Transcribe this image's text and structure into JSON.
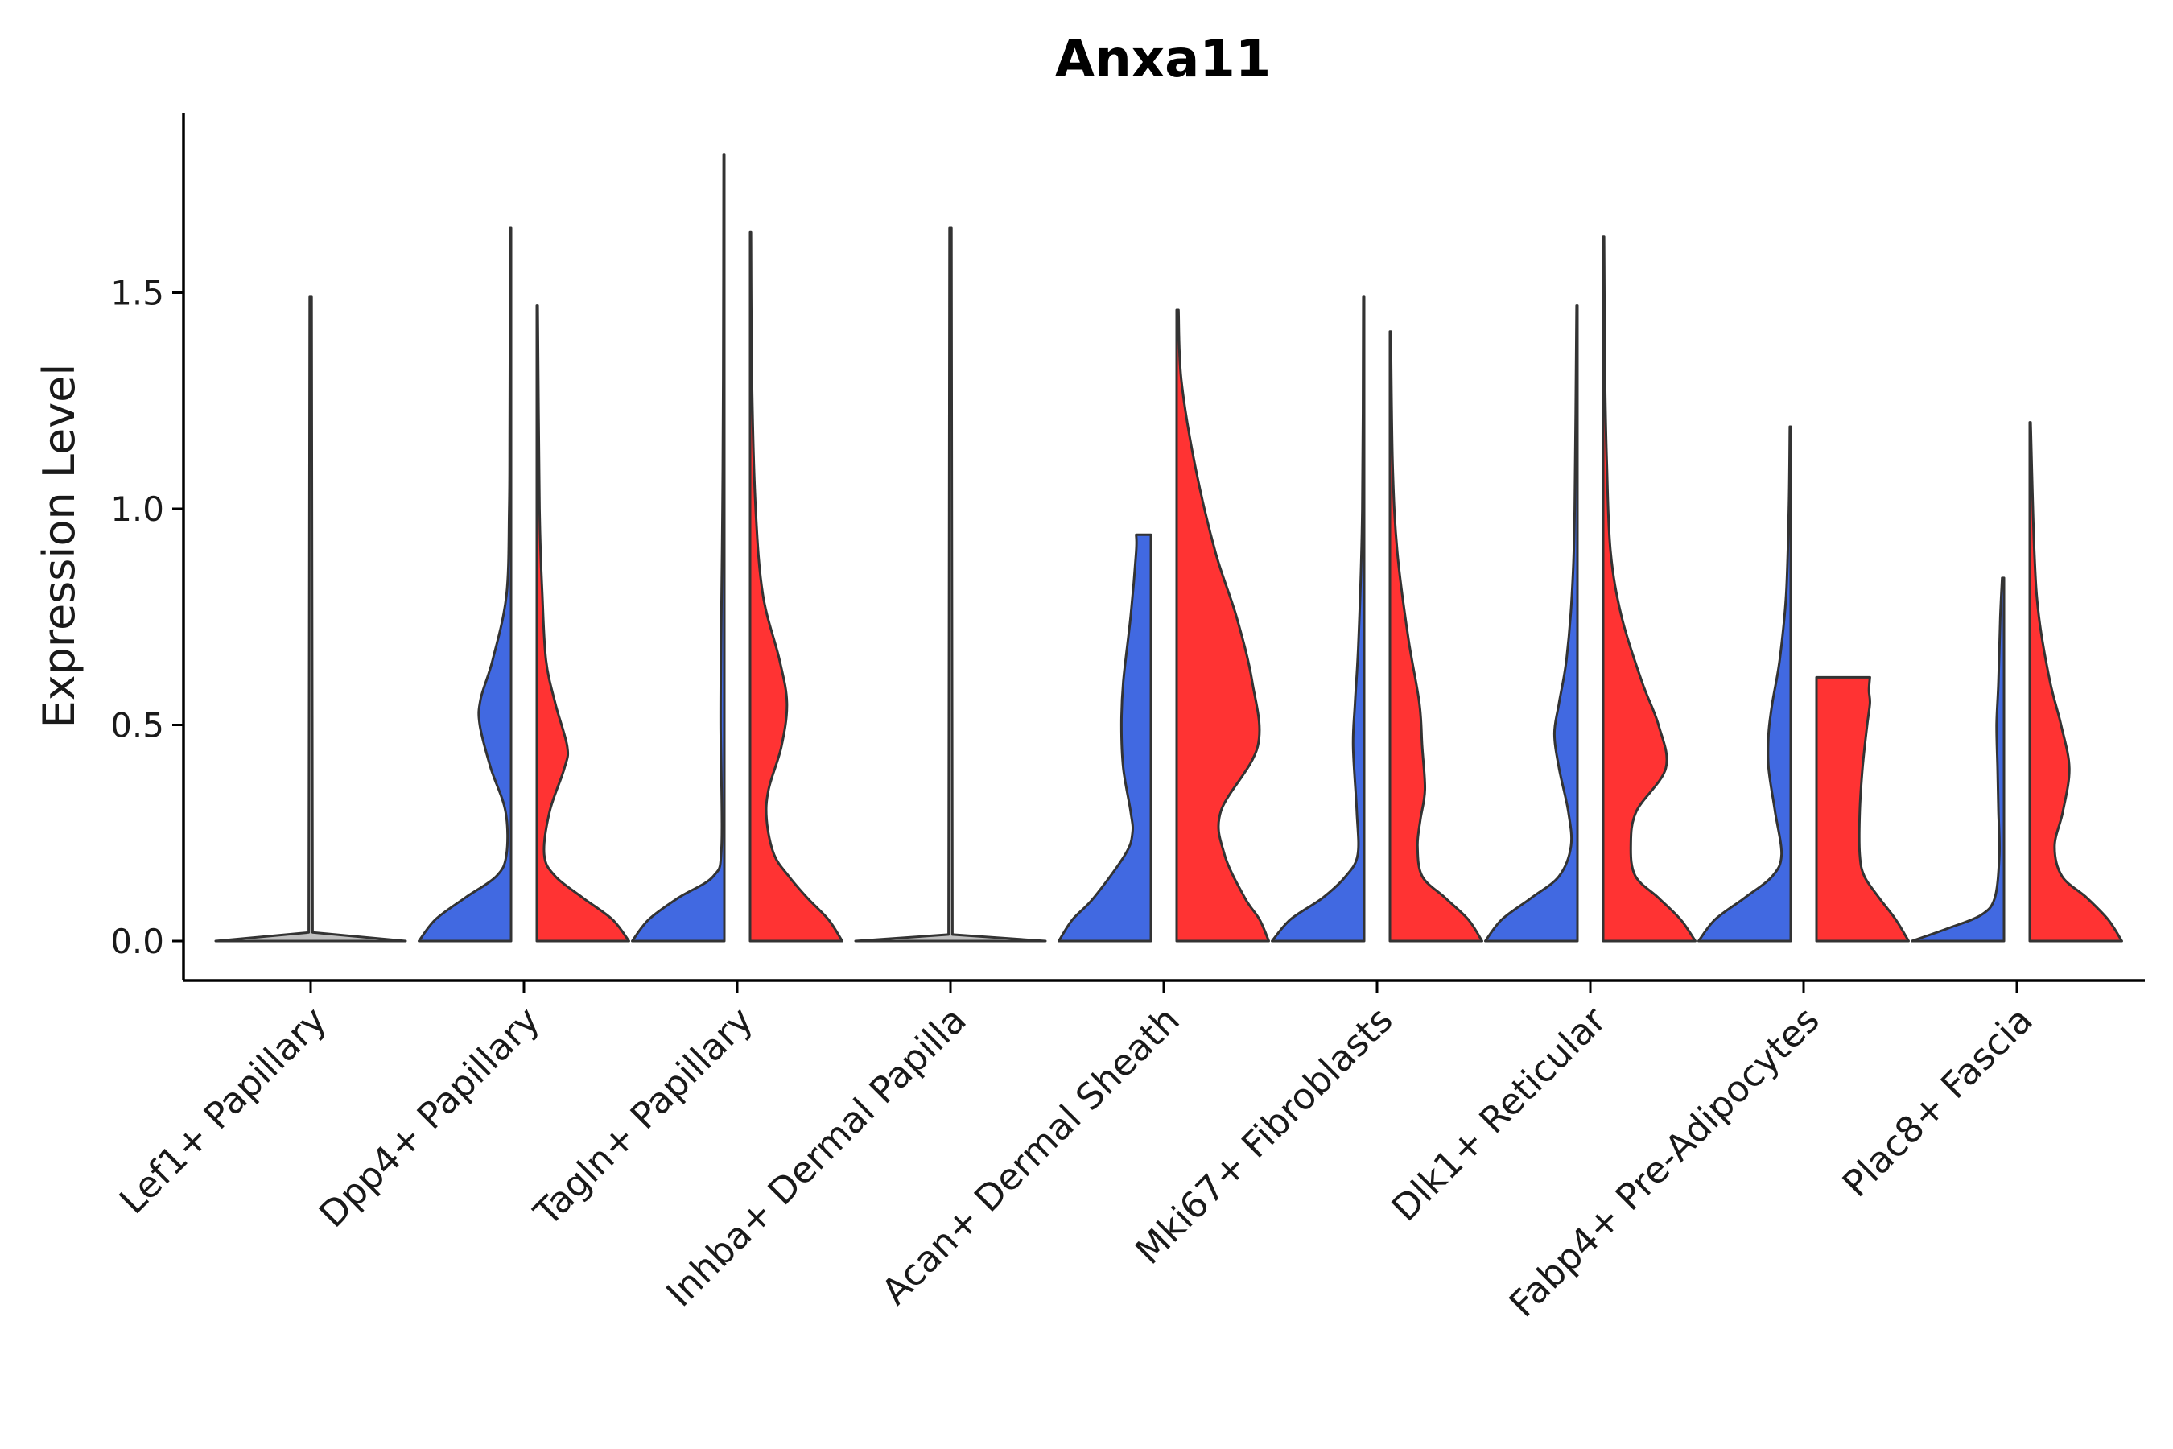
{
  "chart_data": {
    "type": "violin",
    "title": "Anxa11",
    "xlabel": "",
    "ylabel": "Expression Level",
    "ylim": [
      -0.09,
      1.92
    ],
    "yticks": [
      0.0,
      0.5,
      1.0,
      1.5
    ],
    "ytick_labels": [
      "0.0",
      "0.5",
      "1.0",
      "1.5"
    ],
    "grid": false,
    "legend": "none",
    "colors": {
      "blue": "#4169E1",
      "red": "#FF3333",
      "grey": "#C0C0C0"
    },
    "categories": [
      "Lef1+ Papillary",
      "Dpp4+ Papillary",
      "Tagln+ Papillary",
      "Inhba+ Dermal Papilla",
      "Acan+ Dermal Sheath",
      "Mki67+ Fibroblasts",
      "Dlk1+ Reticular",
      "Fabp4+ Pre-Adipocytes",
      "Plac8+ Fascia"
    ],
    "series": [
      {
        "name": "blue",
        "violins": [
          {
            "category": "Lef1+ Papillary",
            "kind": "flat",
            "max": 1.49,
            "profile": [
              [
                0,
                1.0
              ],
              [
                0.02,
                0.02
              ],
              [
                1.49,
                0.01
              ]
            ]
          },
          {
            "category": "Dpp4+ Papillary",
            "kind": "split-left",
            "max": 1.65,
            "profile": [
              [
                0,
                1
              ],
              [
                0.05,
                0.82
              ],
              [
                0.1,
                0.5
              ],
              [
                0.15,
                0.16
              ],
              [
                0.2,
                0.05
              ],
              [
                0.3,
                0.06
              ],
              [
                0.4,
                0.22
              ],
              [
                0.5,
                0.34
              ],
              [
                0.56,
                0.33
              ],
              [
                0.65,
                0.2
              ],
              [
                0.8,
                0.05
              ],
              [
                1.0,
                0.02
              ],
              [
                1.2,
                0.015
              ],
              [
                1.65,
                0.01
              ]
            ]
          },
          {
            "category": "Tagln+ Papillary",
            "kind": "split-left",
            "max": 1.82,
            "profile": [
              [
                0,
                1
              ],
              [
                0.05,
                0.82
              ],
              [
                0.1,
                0.5
              ],
              [
                0.15,
                0.12
              ],
              [
                0.22,
                0.03
              ],
              [
                0.5,
                0.04
              ],
              [
                0.7,
                0.035
              ],
              [
                1.0,
                0.02
              ],
              [
                1.3,
                0.012
              ],
              [
                1.82,
                0.008
              ]
            ]
          },
          {
            "category": "Inhba+ Dermal Papilla",
            "kind": "flat",
            "max": 1.65,
            "profile": [
              [
                0,
                1.0
              ],
              [
                0.015,
                0.02
              ],
              [
                1.65,
                0.01
              ]
            ]
          },
          {
            "category": "Acan+ Dermal Sheath",
            "kind": "split-left",
            "max": 0.94,
            "profile": [
              [
                0,
                1
              ],
              [
                0.05,
                0.85
              ],
              [
                0.1,
                0.62
              ],
              [
                0.2,
                0.28
              ],
              [
                0.25,
                0.2
              ],
              [
                0.3,
                0.22
              ],
              [
                0.4,
                0.3
              ],
              [
                0.5,
                0.32
              ],
              [
                0.6,
                0.3
              ],
              [
                0.75,
                0.22
              ],
              [
                0.9,
                0.16
              ],
              [
                0.94,
                0.16
              ]
            ]
          },
          {
            "category": "Mki67+ Fibroblasts",
            "kind": "split-left",
            "max": 1.49,
            "profile": [
              [
                0,
                1
              ],
              [
                0.05,
                0.8
              ],
              [
                0.1,
                0.45
              ],
              [
                0.15,
                0.2
              ],
              [
                0.2,
                0.07
              ],
              [
                0.3,
                0.08
              ],
              [
                0.45,
                0.12
              ],
              [
                0.55,
                0.1
              ],
              [
                0.7,
                0.06
              ],
              [
                1.0,
                0.02
              ],
              [
                1.49,
                0.01
              ]
            ]
          },
          {
            "category": "Dlk1+ Reticular",
            "kind": "split-left",
            "max": 1.47,
            "profile": [
              [
                0,
                1
              ],
              [
                0.05,
                0.82
              ],
              [
                0.1,
                0.5
              ],
              [
                0.15,
                0.2
              ],
              [
                0.22,
                0.07
              ],
              [
                0.3,
                0.1
              ],
              [
                0.4,
                0.2
              ],
              [
                0.48,
                0.25
              ],
              [
                0.55,
                0.2
              ],
              [
                0.65,
                0.12
              ],
              [
                0.8,
                0.06
              ],
              [
                1.0,
                0.03
              ],
              [
                1.47,
                0.01
              ]
            ]
          },
          {
            "category": "Fabp4+ Pre-Adipocytes",
            "kind": "split-left",
            "max": 1.19,
            "profile": [
              [
                0,
                1
              ],
              [
                0.05,
                0.82
              ],
              [
                0.1,
                0.5
              ],
              [
                0.15,
                0.2
              ],
              [
                0.2,
                0.1
              ],
              [
                0.3,
                0.17
              ],
              [
                0.4,
                0.24
              ],
              [
                0.48,
                0.24
              ],
              [
                0.55,
                0.2
              ],
              [
                0.65,
                0.12
              ],
              [
                0.8,
                0.05
              ],
              [
                1.0,
                0.02
              ],
              [
                1.19,
                0.01
              ]
            ]
          },
          {
            "category": "Plac8+ Fascia",
            "kind": "split-left",
            "max": 0.84,
            "profile": [
              [
                0,
                1
              ],
              [
                0.03,
                0.6
              ],
              [
                0.06,
                0.25
              ],
              [
                0.1,
                0.1
              ],
              [
                0.2,
                0.05
              ],
              [
                0.3,
                0.06
              ],
              [
                0.4,
                0.07
              ],
              [
                0.5,
                0.08
              ],
              [
                0.6,
                0.06
              ],
              [
                0.75,
                0.04
              ],
              [
                0.84,
                0.02
              ]
            ]
          }
        ]
      },
      {
        "name": "red",
        "violins": [
          {
            "category": "Dpp4+ Papillary",
            "kind": "split-right",
            "max": 1.47,
            "profile": [
              [
                0,
                1
              ],
              [
                0.05,
                0.82
              ],
              [
                0.1,
                0.5
              ],
              [
                0.15,
                0.2
              ],
              [
                0.2,
                0.08
              ],
              [
                0.3,
                0.14
              ],
              [
                0.4,
                0.3
              ],
              [
                0.45,
                0.33
              ],
              [
                0.55,
                0.2
              ],
              [
                0.65,
                0.1
              ],
              [
                0.8,
                0.06
              ],
              [
                1.0,
                0.03
              ],
              [
                1.47,
                0.01
              ]
            ]
          },
          {
            "category": "Tagln+ Papillary",
            "kind": "split-right",
            "max": 1.64,
            "profile": [
              [
                0,
                1
              ],
              [
                0.05,
                0.85
              ],
              [
                0.1,
                0.62
              ],
              [
                0.15,
                0.42
              ],
              [
                0.2,
                0.26
              ],
              [
                0.28,
                0.18
              ],
              [
                0.35,
                0.2
              ],
              [
                0.45,
                0.34
              ],
              [
                0.55,
                0.4
              ],
              [
                0.65,
                0.32
              ],
              [
                0.8,
                0.14
              ],
              [
                1.0,
                0.06
              ],
              [
                1.3,
                0.02
              ],
              [
                1.64,
                0.01
              ]
            ]
          },
          {
            "category": "Acan+ Dermal Sheath",
            "kind": "split-right",
            "max": 1.46,
            "profile": [
              [
                0,
                1
              ],
              [
                0.05,
                0.9
              ],
              [
                0.1,
                0.74
              ],
              [
                0.2,
                0.52
              ],
              [
                0.3,
                0.48
              ],
              [
                0.45,
                0.88
              ],
              [
                0.6,
                0.82
              ],
              [
                0.75,
                0.65
              ],
              [
                0.9,
                0.42
              ],
              [
                1.1,
                0.2
              ],
              [
                1.3,
                0.05
              ],
              [
                1.46,
                0.02
              ]
            ]
          },
          {
            "category": "Mki67+ Fibroblasts",
            "kind": "split-right",
            "max": 1.41,
            "profile": [
              [
                0,
                1
              ],
              [
                0.05,
                0.85
              ],
              [
                0.1,
                0.6
              ],
              [
                0.15,
                0.35
              ],
              [
                0.22,
                0.3
              ],
              [
                0.28,
                0.33
              ],
              [
                0.35,
                0.38
              ],
              [
                0.45,
                0.35
              ],
              [
                0.55,
                0.32
              ],
              [
                0.7,
                0.2
              ],
              [
                0.9,
                0.08
              ],
              [
                1.1,
                0.03
              ],
              [
                1.41,
                0.01
              ]
            ]
          },
          {
            "category": "Dlk1+ Reticular",
            "kind": "split-right",
            "max": 1.63,
            "profile": [
              [
                0,
                1
              ],
              [
                0.05,
                0.84
              ],
              [
                0.1,
                0.6
              ],
              [
                0.15,
                0.35
              ],
              [
                0.22,
                0.3
              ],
              [
                0.3,
                0.36
              ],
              [
                0.4,
                0.68
              ],
              [
                0.5,
                0.6
              ],
              [
                0.6,
                0.42
              ],
              [
                0.75,
                0.2
              ],
              [
                0.9,
                0.08
              ],
              [
                1.1,
                0.04
              ],
              [
                1.3,
                0.02
              ],
              [
                1.63,
                0.01
              ]
            ]
          },
          {
            "category": "Fabp4+ Pre-Adipocytes",
            "kind": "split-right",
            "max": 0.61,
            "profile": [
              [
                0,
                1
              ],
              [
                0.05,
                0.86
              ],
              [
                0.1,
                0.68
              ],
              [
                0.15,
                0.52
              ],
              [
                0.2,
                0.47
              ],
              [
                0.3,
                0.47
              ],
              [
                0.4,
                0.5
              ],
              [
                0.5,
                0.55
              ],
              [
                0.55,
                0.58
              ],
              [
                0.58,
                0.57
              ],
              [
                0.61,
                0.58
              ]
            ]
          },
          {
            "category": "Plac8+ Fascia",
            "kind": "split-right",
            "max": 1.2,
            "profile": [
              [
                0,
                1
              ],
              [
                0.05,
                0.85
              ],
              [
                0.1,
                0.62
              ],
              [
                0.15,
                0.35
              ],
              [
                0.22,
                0.27
              ],
              [
                0.3,
                0.36
              ],
              [
                0.4,
                0.43
              ],
              [
                0.5,
                0.34
              ],
              [
                0.6,
                0.22
              ],
              [
                0.75,
                0.1
              ],
              [
                0.9,
                0.05
              ],
              [
                1.2,
                0.01
              ]
            ]
          }
        ]
      }
    ]
  }
}
